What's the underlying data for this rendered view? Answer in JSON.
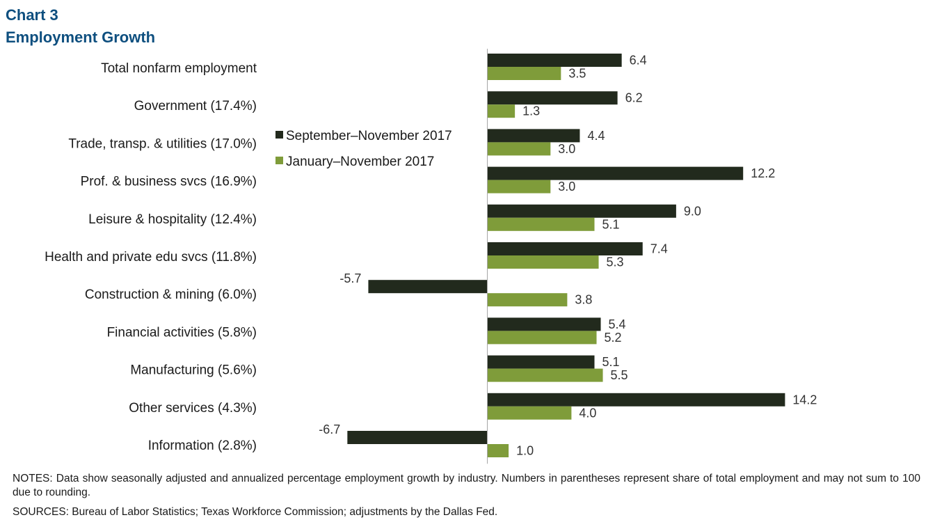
{
  "title": {
    "line1": "Chart 3",
    "line2": "Employment  Growth"
  },
  "notes": "NOTES: Data show seasonally adjusted and annualized percentage employment growth by industry. Numbers in parentheses represent share of total employment and may not sum to 100 due to rounding.",
  "sources": "SOURCES: Bureau of Labor Statistics; Texas Workforce Commission; adjustments by the Dallas Fed.",
  "colors": {
    "series1": "#222a1d",
    "series2": "#7f9c3a",
    "axis": "#a6a6a6"
  },
  "chart_data": {
    "type": "bar",
    "orientation": "horizontal",
    "categories": [
      "Total nonfarm employment",
      "Government (17.4%)",
      "Trade, transp. & utilities (17.0%)",
      "Prof. & business svcs (16.9%)",
      "Leisure & hospitality (12.4%)",
      "Health and private edu svcs (11.8%)",
      "Construction & mining (6.0%)",
      "Financial activities (5.8%)",
      "Manufacturing (5.6%)",
      "Other services (4.3%)",
      "Information (2.8%)"
    ],
    "series": [
      {
        "name": "September–November 2017",
        "values": [
          6.4,
          6.2,
          4.4,
          12.2,
          9.0,
          7.4,
          -5.7,
          5.4,
          5.1,
          14.2,
          -6.7
        ],
        "labels": [
          "6.4",
          "6.2",
          "4.4",
          "12.2",
          "9.0",
          "7.4",
          "-5.7",
          "5.4",
          "5.1",
          "14.2",
          "-6.7"
        ]
      },
      {
        "name": "January–November 2017",
        "values": [
          3.5,
          1.3,
          3.0,
          3.0,
          5.1,
          5.3,
          3.8,
          5.2,
          5.5,
          4.0,
          1.0
        ],
        "labels": [
          "3.5",
          "1.3",
          "3.0",
          "3.0",
          "5.1",
          "5.3",
          "3.8",
          "5.2",
          "5.5",
          "4.0",
          "1.0"
        ]
      }
    ],
    "xlim": [
      -7,
      15
    ],
    "grid": false,
    "legend_position": "middle-left of plot area"
  }
}
